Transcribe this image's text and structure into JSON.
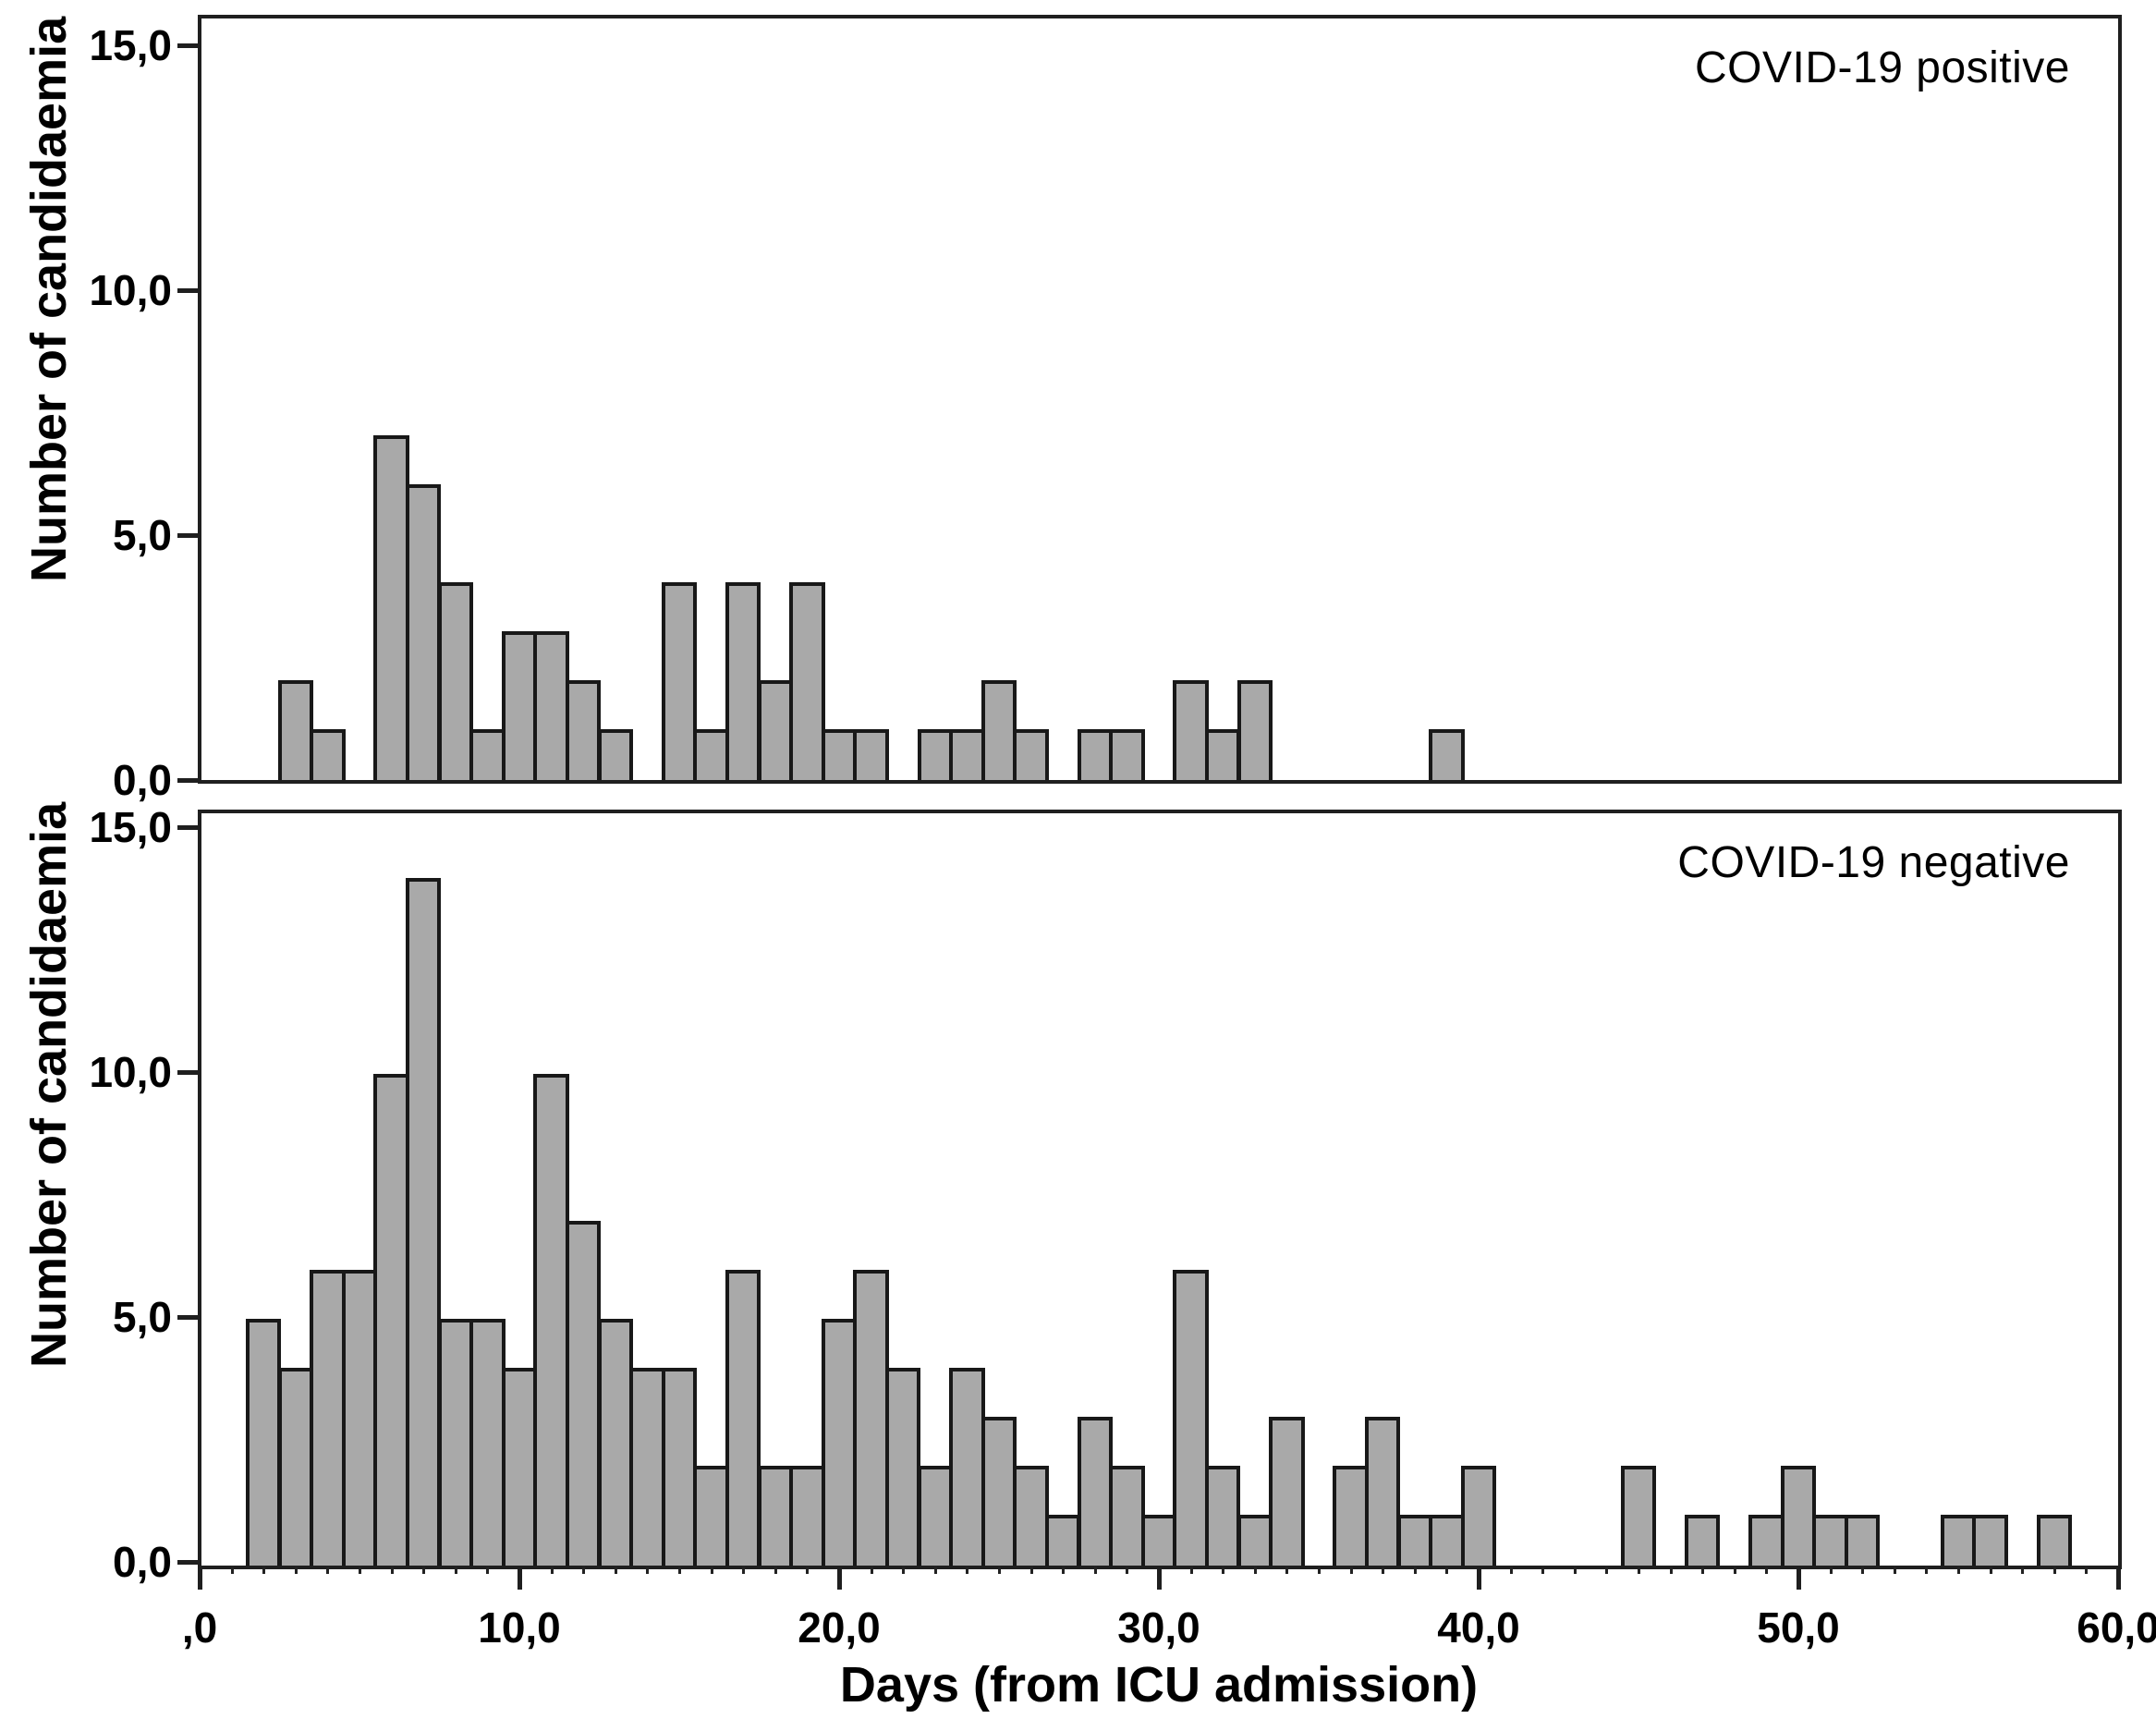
{
  "figure": {
    "background": "#ffffff",
    "bar_fill": "#a9a9a9",
    "bar_border": "#181818",
    "axis_color": "#1f1f1f",
    "x_axis": {
      "title": "Days (from ICU admission)",
      "tick_values": [
        0,
        10,
        20,
        30,
        40,
        50,
        60
      ],
      "tick_labels": [
        ",0",
        "10,0",
        "20,0",
        "30,0",
        "40,0",
        "50,0",
        "60,0"
      ],
      "range": [
        0,
        60
      ]
    },
    "y_axis": {
      "title": "Number of candidaemia",
      "tick_values": [
        0,
        5,
        10,
        15
      ],
      "tick_labels": [
        "0,0",
        "5,0",
        "10,0",
        "15,0"
      ],
      "range": [
        0,
        15.5
      ]
    }
  },
  "chart_data": [
    {
      "type": "bar",
      "panel_label": "COVID-19 positive",
      "ylabel": "Number of candidaemia",
      "xlabel": "Days (from ICU admission)",
      "bin_width_days": 1,
      "ylim": [
        0,
        15.5
      ],
      "xlim": [
        0,
        60
      ],
      "bins_day_count": [
        [
          3,
          2
        ],
        [
          4,
          1
        ],
        [
          6,
          7
        ],
        [
          7,
          6
        ],
        [
          8,
          4
        ],
        [
          9,
          1
        ],
        [
          10,
          3
        ],
        [
          11,
          3
        ],
        [
          12,
          2
        ],
        [
          13,
          1
        ],
        [
          15,
          4
        ],
        [
          16,
          1
        ],
        [
          17,
          4
        ],
        [
          18,
          2
        ],
        [
          19,
          4
        ],
        [
          20,
          1
        ],
        [
          21,
          1
        ],
        [
          23,
          1
        ],
        [
          24,
          1
        ],
        [
          25,
          2
        ],
        [
          26,
          1
        ],
        [
          28,
          1
        ],
        [
          29,
          1
        ],
        [
          31,
          2
        ],
        [
          32,
          1
        ],
        [
          33,
          2
        ],
        [
          39,
          1
        ]
      ]
    },
    {
      "type": "bar",
      "panel_label": "COVID-19 negative",
      "ylabel": "Number of candidaemia",
      "xlabel": "Days (from ICU admission)",
      "bin_width_days": 1,
      "ylim": [
        0,
        15.5
      ],
      "xlim": [
        0,
        60
      ],
      "bins_day_count": [
        [
          2,
          5
        ],
        [
          3,
          4
        ],
        [
          4,
          6
        ],
        [
          5,
          6
        ],
        [
          6,
          10
        ],
        [
          7,
          14
        ],
        [
          8,
          5
        ],
        [
          9,
          5
        ],
        [
          10,
          4
        ],
        [
          11,
          10
        ],
        [
          12,
          7
        ],
        [
          13,
          5
        ],
        [
          14,
          4
        ],
        [
          15,
          4
        ],
        [
          16,
          2
        ],
        [
          17,
          6
        ],
        [
          18,
          2
        ],
        [
          19,
          2
        ],
        [
          20,
          5
        ],
        [
          21,
          6
        ],
        [
          22,
          4
        ],
        [
          23,
          2
        ],
        [
          24,
          4
        ],
        [
          25,
          3
        ],
        [
          26,
          2
        ],
        [
          27,
          1
        ],
        [
          28,
          3
        ],
        [
          29,
          2
        ],
        [
          30,
          1
        ],
        [
          31,
          6
        ],
        [
          32,
          2
        ],
        [
          33,
          1
        ],
        [
          34,
          3
        ],
        [
          36,
          2
        ],
        [
          37,
          3
        ],
        [
          38,
          1
        ],
        [
          39,
          1
        ],
        [
          40,
          2
        ],
        [
          45,
          2
        ],
        [
          47,
          1
        ],
        [
          49,
          1
        ],
        [
          50,
          2
        ],
        [
          51,
          1
        ],
        [
          52,
          1
        ],
        [
          55,
          1
        ],
        [
          56,
          1
        ],
        [
          58,
          1
        ]
      ]
    }
  ]
}
